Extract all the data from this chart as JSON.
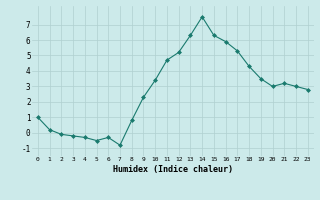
{
  "x": [
    0,
    1,
    2,
    3,
    4,
    5,
    6,
    7,
    8,
    9,
    10,
    11,
    12,
    13,
    14,
    15,
    16,
    17,
    18,
    19,
    20,
    21,
    22,
    23
  ],
  "y": [
    1.0,
    0.2,
    -0.1,
    -0.2,
    -0.3,
    -0.5,
    -0.3,
    -0.8,
    0.8,
    2.3,
    3.4,
    4.7,
    5.2,
    6.3,
    7.5,
    6.3,
    5.9,
    5.3,
    4.3,
    3.5,
    3.0,
    3.2,
    3.0,
    2.8
  ],
  "line_color": "#1a7a6e",
  "marker": "D",
  "marker_size": 2.0,
  "bg_color": "#cceaea",
  "grid_color": "#b0d0d0",
  "xlabel": "Humidex (Indice chaleur)",
  "xlim": [
    -0.5,
    23.5
  ],
  "ylim": [
    -1.5,
    8.2
  ],
  "yticks": [
    -1,
    0,
    1,
    2,
    3,
    4,
    5,
    6,
    7
  ],
  "xtick_labels": [
    "0",
    "1",
    "2",
    "3",
    "4",
    "5",
    "6",
    "7",
    "8",
    "9",
    "10",
    "11",
    "12",
    "13",
    "14",
    "15",
    "16",
    "17",
    "18",
    "19",
    "20",
    "21",
    "22",
    "23"
  ]
}
